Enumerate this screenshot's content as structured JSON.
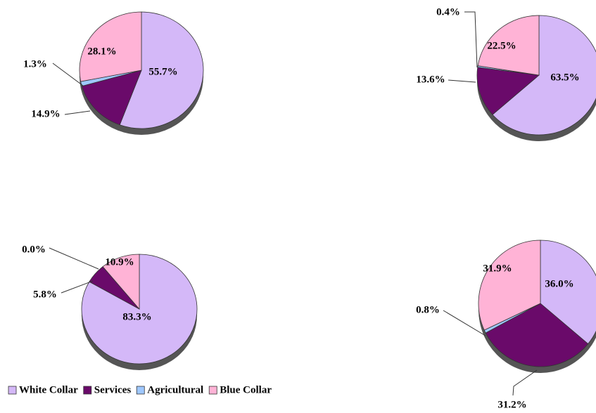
{
  "chart_data": [
    {
      "type": "pie",
      "categories": [
        "White Collar",
        "Services",
        "Agricultural",
        "Blue Collar"
      ],
      "values": [
        55.7,
        14.9,
        1.3,
        28.1
      ],
      "value_labels": [
        "55.7%",
        "14.9%",
        "1.3%",
        "28.1%"
      ],
      "colors": [
        "#d4b8f8",
        "#6a0a6a",
        "#9fc8ff",
        "#ffb3d6"
      ],
      "legend": "bottom-left"
    },
    {
      "type": "pie",
      "categories": [
        "White Collar",
        "Services",
        "Agricultural",
        "Blue Collar"
      ],
      "values": [
        63.5,
        13.6,
        0.4,
        22.5
      ],
      "value_labels": [
        "63.5%",
        "13.6%",
        "0.4%",
        "22.5%"
      ],
      "colors": [
        "#d4b8f8",
        "#6a0a6a",
        "#9fc8ff",
        "#ffb3d6"
      ]
    },
    {
      "type": "pie",
      "categories": [
        "White Collar",
        "Services",
        "Agricultural",
        "Blue Collar"
      ],
      "values": [
        83.3,
        5.8,
        0,
        10.9
      ],
      "value_labels": [
        "83.3%",
        "5.8%",
        "0.0%",
        "10.9%"
      ],
      "colors": [
        "#d4b8f8",
        "#6a0a6a",
        "#9fc8ff",
        "#ffb3d6"
      ]
    },
    {
      "type": "pie",
      "categories": [
        "White Collar",
        "Services",
        "Agricultural",
        "Blue Collar"
      ],
      "values": [
        36.0,
        31.2,
        0.8,
        31.9
      ],
      "value_labels": [
        "36.0%",
        "31.2%",
        "0.8%",
        "31.9%"
      ],
      "colors": [
        "#d4b8f8",
        "#6a0a6a",
        "#9fc8ff",
        "#ffb3d6"
      ]
    }
  ]
}
